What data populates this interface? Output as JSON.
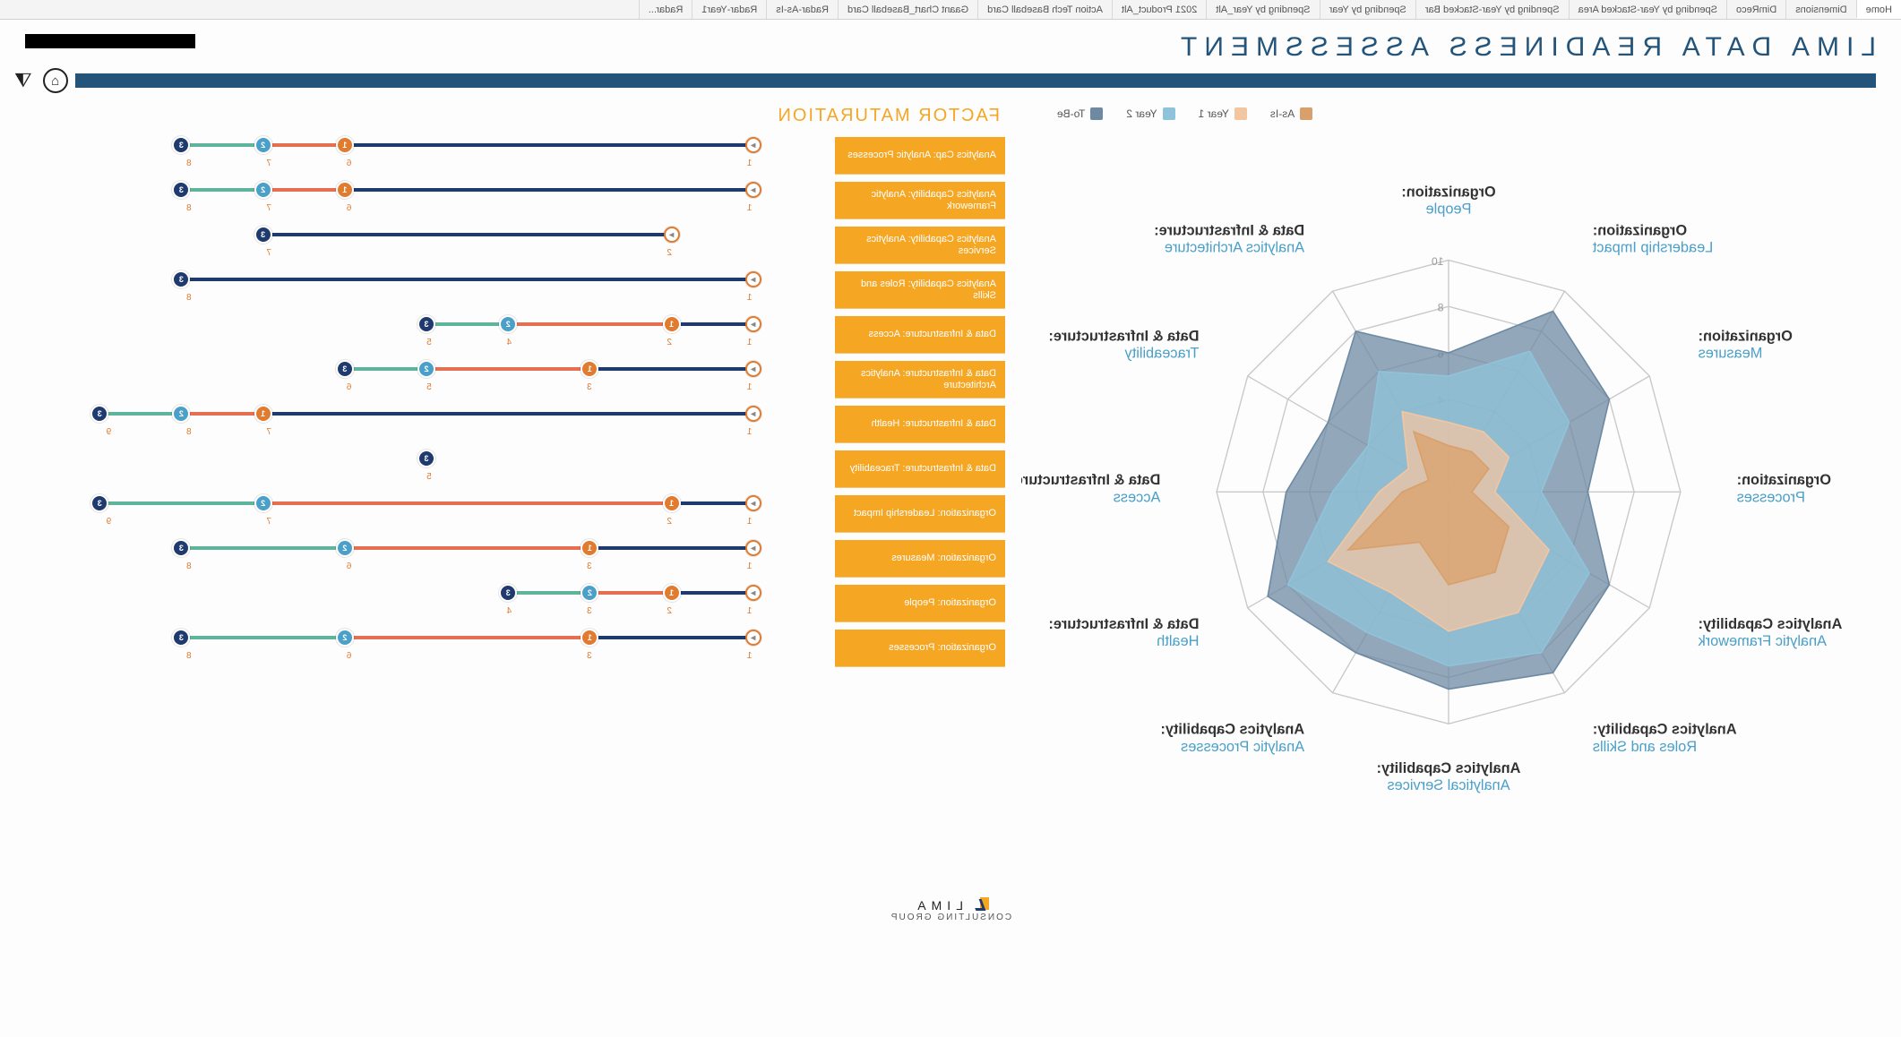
{
  "tabs": {
    "items": [
      "Home",
      "Dimensions",
      "DimReco",
      "Spending by Year-Stacked Area",
      "Spending by Year-Stacked Bar",
      "Spending by Year",
      "Spending by Year_Alt",
      "2021 Product_Alt",
      "Action Tech Baseball Card",
      "Gaant Chart_Baseball Card",
      "Radar-As-Is",
      "Radar-Year1",
      "Radar..."
    ],
    "active_index": 0
  },
  "title": "LIMA DATA READINESS ASSESSMENT",
  "colors": {
    "asis": "#d9a06b",
    "year1": "#f2c6a1",
    "year2": "#8fc3da",
    "tobe": "#6e8aa3",
    "brand_blue": "#24547a",
    "deep_blue": "#1e3a6e",
    "accent_orange": "#e07b2f",
    "accent_teal": "#5fb59b",
    "mid_blue": "#4aa0c8",
    "factor_orange": "#f5a623",
    "grid": "#c9c9c9",
    "bg": "#ffffff"
  },
  "legend": [
    {
      "key": "asis",
      "label": "As-Is"
    },
    {
      "key": "year1",
      "label": "Year 1"
    },
    {
      "key": "year2",
      "label": "Year 2"
    },
    {
      "key": "tobe",
      "label": "To-Be"
    }
  ],
  "radar": {
    "type": "radar",
    "max": 10,
    "rings": [
      2,
      4,
      6,
      8,
      10
    ],
    "axes": [
      {
        "t": "Organization:",
        "b": "People"
      },
      {
        "t": "Data & Infrastructure:",
        "b": "Analytics Architecture"
      },
      {
        "t": "Data & Infrastructure:",
        "b": "Traceability"
      },
      {
        "t": "Data & Infrastructure:",
        "b": "Access"
      },
      {
        "t": "Data & Infrastructure:",
        "b": "Health"
      },
      {
        "t": "Analytics Capability:",
        "b": "Analytic Processes"
      },
      {
        "t": "Analytics Capability:",
        "b": "Analytical Services"
      },
      {
        "t": "Analytics Capability:",
        "b": "Roles and Skills"
      },
      {
        "t": "Analytics Capability:",
        "b": "Analytic Framework"
      },
      {
        "t": "Organization:",
        "b": "Processes"
      },
      {
        "t": "Organization:",
        "b": "Measures"
      },
      {
        "t": "Organization:",
        "b": "Leadership Impact"
      }
    ],
    "series": {
      "asis": [
        2,
        3,
        1,
        2,
        5,
        2.5,
        4,
        4,
        3,
        1,
        2,
        2
      ],
      "year1": [
        3,
        4,
        2,
        3,
        6,
        5,
        6,
        6,
        5,
        2,
        3,
        3
      ],
      "year2": [
        5,
        6,
        4,
        5,
        8,
        7,
        7.5,
        8,
        7,
        4,
        6,
        7
      ],
      "tobe": [
        6,
        8,
        6,
        7,
        9,
        8,
        8.5,
        9,
        8,
        6,
        8,
        9
      ]
    },
    "fill_opacity": 0.75,
    "stroke_width": 1.2
  },
  "section_title": "FACTOR MATURATION",
  "factors": {
    "scale_max": 10,
    "rows": [
      {
        "label": "Analytics Cap: Analytic Processes",
        "start": 1,
        "y1": 6,
        "y2": 7,
        "y3": 8,
        "ticks": [
          1,
          6,
          7,
          8
        ]
      },
      {
        "label": "Analytics Capability: Analytic Framework",
        "start": 1,
        "y1": 6,
        "y2": 7,
        "y3": 8,
        "ticks": [
          1,
          6,
          7,
          8
        ]
      },
      {
        "label": "Analytics Capability: Analytics Services",
        "start": 2,
        "y1": null,
        "y2": null,
        "y3": 7,
        "ticks": [
          2,
          7
        ]
      },
      {
        "label": "Analytics Capability: Roles and Skills",
        "start": 1,
        "y1": null,
        "y2": null,
        "y3": 8,
        "ticks": [
          1,
          8
        ]
      },
      {
        "label": "Data & Infrastructure: Access",
        "start": 1,
        "y1": 2,
        "y2": 4,
        "y3": 5,
        "ticks": [
          1,
          2,
          4,
          5
        ]
      },
      {
        "label": "Data & Infrastructure: Analytics Architecture",
        "start": 1,
        "y1": 3,
        "y2": 5,
        "y3": 6,
        "ticks": [
          1,
          3,
          5,
          6
        ]
      },
      {
        "label": "Data & Infrastructure: Health",
        "start": 1,
        "y1": 7,
        "y2": 8,
        "y3": 9,
        "ticks": [
          1,
          7,
          8,
          9
        ]
      },
      {
        "label": "Data & Infrastructure: Traceability",
        "start": null,
        "y1": null,
        "y2": null,
        "y3": 5,
        "ticks": [
          5
        ]
      },
      {
        "label": "Organization: Leadership Impact",
        "start": 1,
        "y1": 2,
        "y2": 7,
        "y3": 9,
        "ticks": [
          1,
          2,
          7,
          9
        ]
      },
      {
        "label": "Organization: Measures",
        "start": 1,
        "y1": 3,
        "y2": 6,
        "y3": 8,
        "ticks": [
          1,
          3,
          6,
          8
        ]
      },
      {
        "label": "Organization: People",
        "start": 1,
        "y1": 2,
        "y2": 3,
        "y3": 4,
        "ticks": [
          1,
          2,
          3,
          4
        ]
      },
      {
        "label": "Organization: Processes",
        "start": 1,
        "y1": 3,
        "y2": 6,
        "y3": 8,
        "ticks": [
          1,
          3,
          6,
          8
        ]
      }
    ],
    "seg_colors": {
      "a": "#1e3a6e",
      "b": "#e76f51",
      "c": "#5fb59b",
      "d": "#1e3a6e"
    }
  },
  "footer": {
    "brand": "LIMA",
    "sub": "CONSULTING GROUP"
  }
}
